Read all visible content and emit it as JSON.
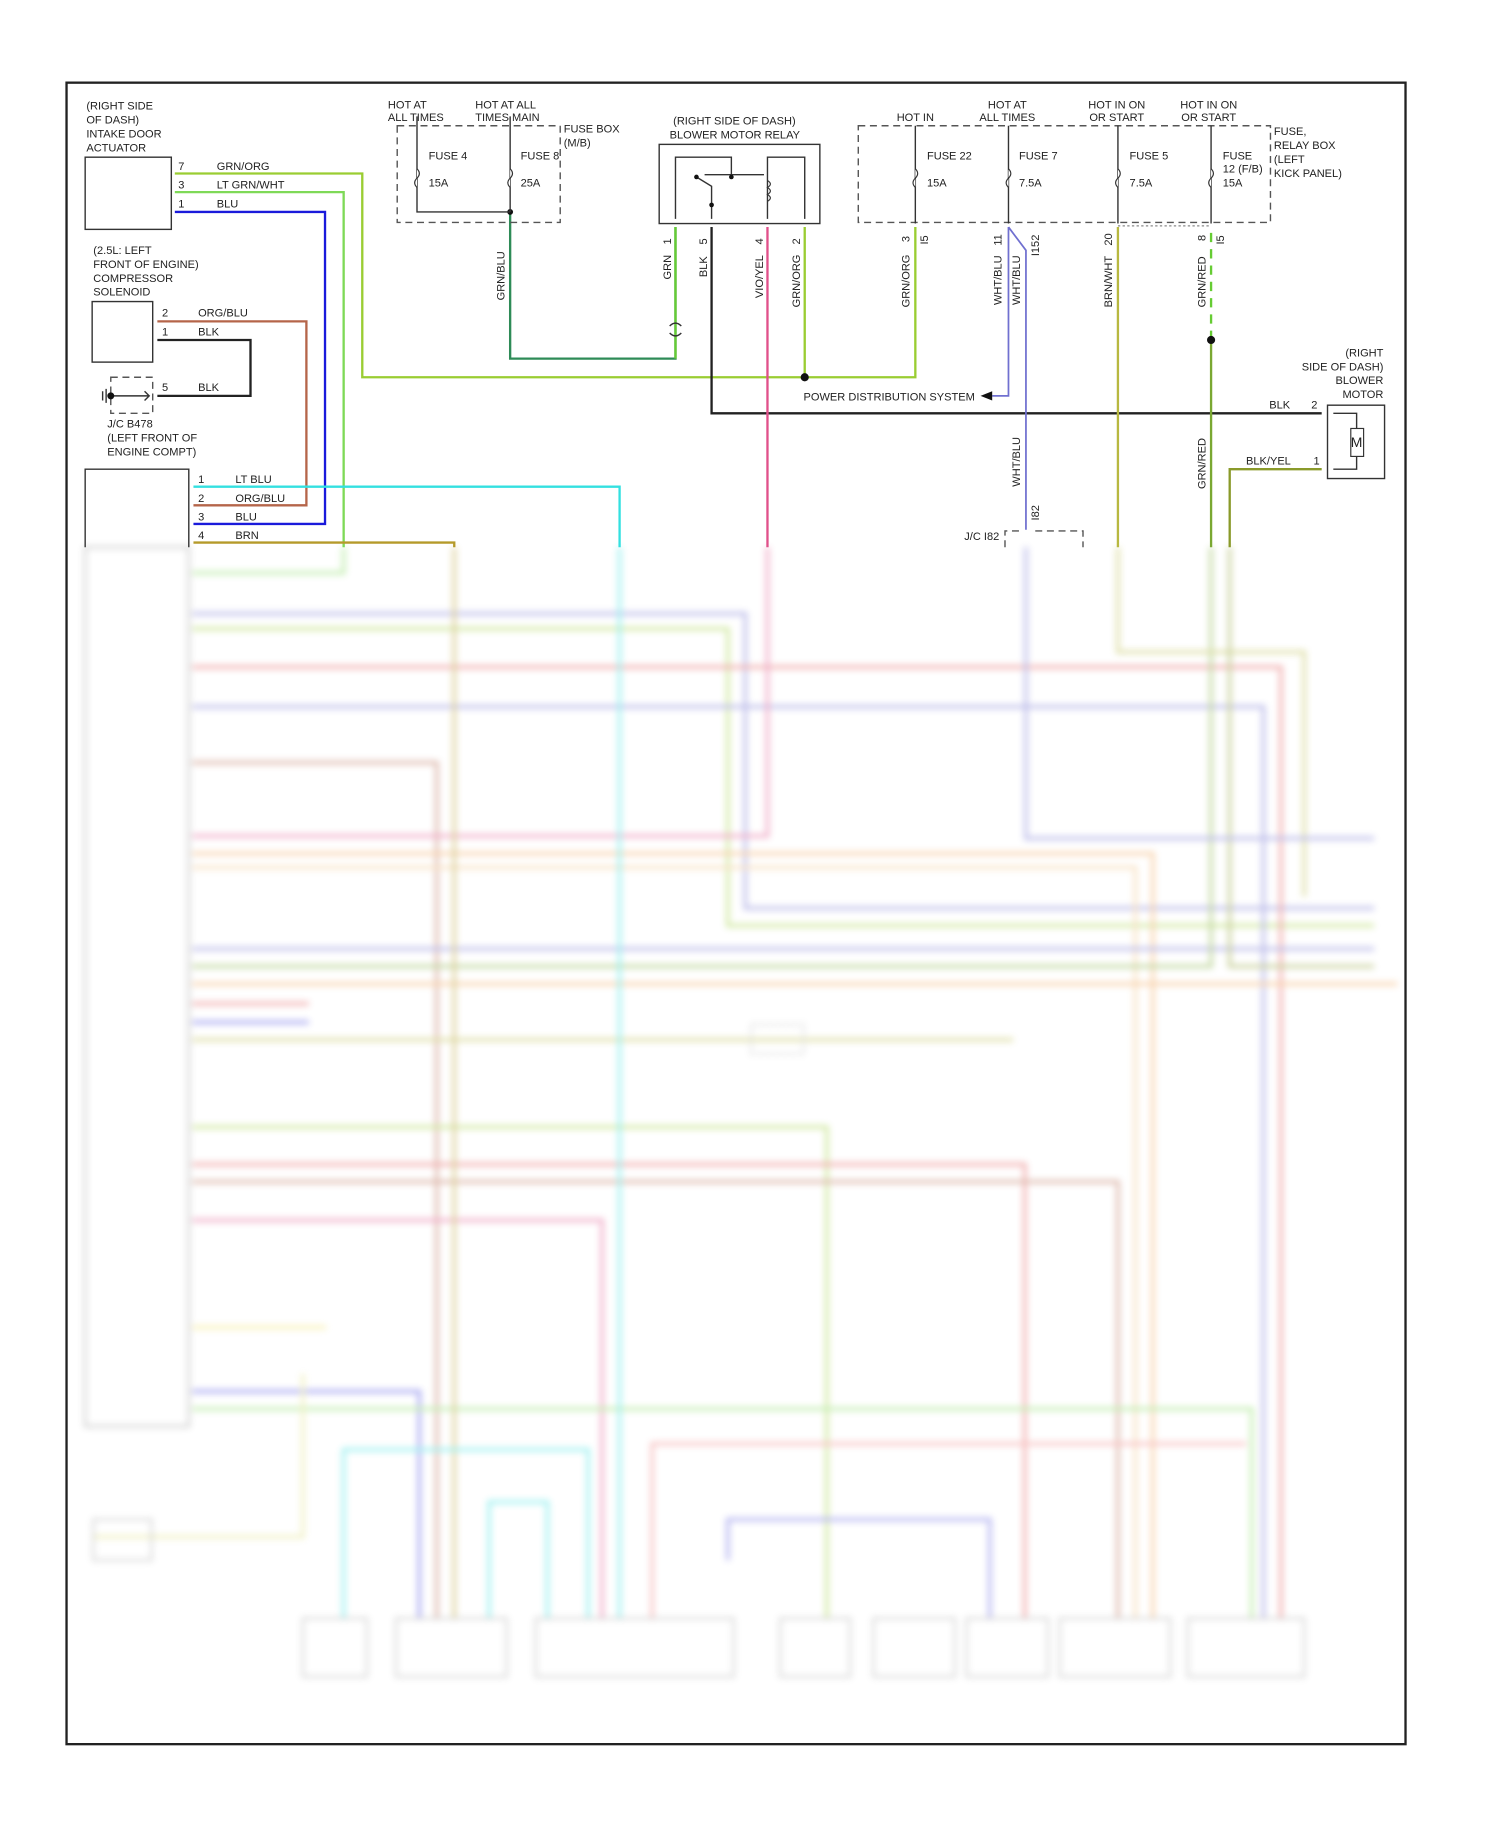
{
  "intake_door_actuator": {
    "location": [
      "(RIGHT SIDE",
      "OF DASH)",
      "INTAKE DOOR",
      "ACTUATOR"
    ],
    "pins": [
      {
        "pin": "7",
        "wire": "GRN/ORG"
      },
      {
        "pin": "3",
        "wire": "LT GRN/WHT"
      },
      {
        "pin": "1",
        "wire": "BLU"
      }
    ]
  },
  "compressor_solenoid": {
    "location": [
      "(2.5L: LEFT",
      "FRONT OF ENGINE)",
      "COMPRESSOR",
      "SOLENOID"
    ],
    "pins": [
      {
        "pin": "2",
        "wire": "ORG/BLU"
      },
      {
        "pin": "1",
        "wire": "BLK"
      }
    ]
  },
  "junction_b478": {
    "pin": "5",
    "wire": "BLK",
    "label": [
      "J/C B478",
      "(LEFT FRONT OF",
      "ENGINE COMPT)"
    ]
  },
  "control_module_pins": [
    {
      "pin": "1",
      "wire": "LT BLU"
    },
    {
      "pin": "2",
      "wire": "ORG/BLU"
    },
    {
      "pin": "3",
      "wire": "BLU"
    },
    {
      "pin": "4",
      "wire": "BRN"
    }
  ],
  "fuse_box_mb": {
    "label": [
      "FUSE BOX",
      "(M/B)"
    ],
    "headers": [
      [
        "HOT AT",
        "ALL TIMES"
      ],
      [
        "HOT AT ALL",
        "TIMES MAIN"
      ]
    ],
    "fuses": [
      {
        "name": "FUSE 4",
        "rating": "15A"
      },
      {
        "name": "FUSE 8",
        "rating": "25A"
      }
    ],
    "output_wire": "GRN/BLU"
  },
  "blower_motor_relay": {
    "label": [
      "(RIGHT SIDE OF DASH)",
      "BLOWER MOTOR RELAY"
    ],
    "pins": [
      {
        "pin": "1",
        "wire": "GRN"
      },
      {
        "pin": "5",
        "wire": "BLK"
      },
      {
        "pin": "4",
        "wire": "VIO/YEL"
      },
      {
        "pin": "2",
        "wire": "GRN/ORG"
      }
    ]
  },
  "fuse_relay_box": {
    "label": [
      "FUSE,",
      "RELAY BOX",
      "(LEFT",
      "KICK PANEL)"
    ],
    "fuses": [
      {
        "header": [
          "",
          "HOT IN"
        ],
        "name": [
          "FUSE 22"
        ],
        "rating": "15A",
        "pin": "3",
        "connector": "I5",
        "wire": "GRN/ORG"
      },
      {
        "header": [
          "HOT AT",
          "ALL TIMES"
        ],
        "name": [
          "FUSE 7"
        ],
        "rating": "7.5A",
        "pin": "11",
        "connector": "I152",
        "wire": "WHT/BLU"
      },
      {
        "header": [
          "HOT IN ON",
          "OR START"
        ],
        "name": [
          "FUSE 5"
        ],
        "rating": "7.5A",
        "pin": "20",
        "connector": "",
        "wire": "BRN/WHT"
      },
      {
        "header": [
          "HOT IN ON",
          "OR START"
        ],
        "name": [
          "FUSE",
          "12 (F/B)"
        ],
        "rating": "15A",
        "pin": "8",
        "connector": "I5",
        "wire": "GRN/RED"
      }
    ],
    "branch_wire": "WHT/BLU"
  },
  "power_distribution": "POWER DISTRIBUTION SYSTEM",
  "blower_motor": {
    "label": [
      "(RIGHT",
      "SIDE OF DASH)",
      "BLOWER",
      "MOTOR"
    ],
    "symbol": "M",
    "pins": [
      {
        "pin": "2",
        "wire": "BLK"
      },
      {
        "pin": "1",
        "wire": "BLK/YEL"
      }
    ]
  },
  "junction_i82": {
    "label": "J/C I82",
    "connector": "I82",
    "wire": "WHT/BLU",
    "lower_wire": "GRN/RED"
  },
  "colors": {
    "grn_org": "#9acd32",
    "lt_grn_wht": "#7ed957",
    "blu": "#1a1adb",
    "org_blu": "#b5654a",
    "lt_blu": "#33e0e0",
    "brn": "#b59a2a",
    "grn_blu": "#2e8b57",
    "grn": "#66cc33",
    "vio_yel": "#e0508a",
    "wht_blu": "#7070d0",
    "brn_wht": "#b8b840",
    "grn_red": "#7aa832",
    "blk_yel": "#8a9a2a"
  }
}
